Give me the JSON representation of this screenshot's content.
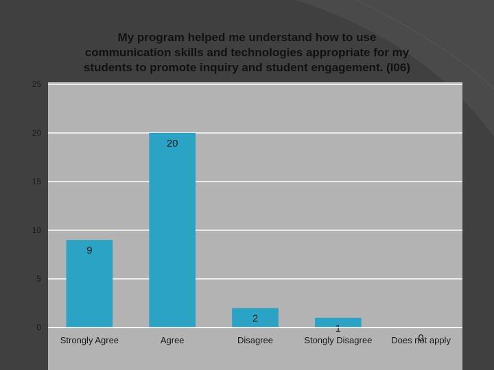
{
  "chart_data": {
    "type": "bar",
    "title": "My program helped me understand how to use communication skills and technologies appropriate for my students to promote inquiry and student engagement. (I06)",
    "title_lines": [
      "My program helped me understand how to use",
      "communication skills and technologies appropriate for my",
      "students to promote inquiry and student engagement. (I06)"
    ],
    "categories": [
      "Strongly Agree",
      "Agree",
      "Disagree",
      "Stongly Disagree",
      "Does not apply"
    ],
    "values": [
      9,
      20,
      2,
      1,
      0
    ],
    "data_labels": [
      "9",
      "20",
      "2",
      "1",
      "0"
    ],
    "xlabel": "",
    "ylabel": "",
    "ylim": [
      0,
      25
    ],
    "yticks": [
      "0",
      "5",
      "10",
      "15",
      "20",
      "25"
    ],
    "grid": true,
    "legend": "none",
    "colors": {
      "bar": "#2aa3c4",
      "plot_background": "#b3b3b3",
      "gridline": "#ffffff",
      "slide_background": "#404040"
    }
  }
}
